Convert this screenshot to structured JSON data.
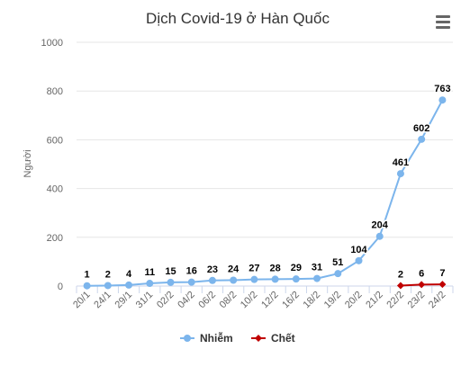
{
  "chart_data": {
    "type": "line",
    "title": "Dịch Covid-19 ở Hàn Quốc",
    "ylabel": "Người",
    "xlabel": "",
    "ylim": [
      0,
      1000
    ],
    "yticks": [
      0,
      200,
      400,
      600,
      800,
      1000
    ],
    "grid": true,
    "legend": "bottom",
    "categories": [
      "20/1",
      "24/1",
      "29/1",
      "31/1",
      "02/2",
      "04/2",
      "06/2",
      "08/2",
      "10/2",
      "12/2",
      "16/2",
      "18/2",
      "19/2",
      "20/2",
      "21/2",
      "22/2",
      "23/2",
      "24/2"
    ],
    "series": [
      {
        "name": "Nhiễm",
        "color": "#7cb5ec",
        "values": [
          1,
          2,
          4,
          11,
          15,
          16,
          23,
          24,
          27,
          28,
          29,
          31,
          51,
          104,
          204,
          461,
          602,
          763
        ],
        "labels": [
          "1",
          "2",
          "4",
          "11",
          "15",
          "16",
          "23",
          "24",
          "27",
          "28",
          "29",
          "31",
          "51",
          "104",
          "204",
          "461",
          "602",
          "763"
        ]
      },
      {
        "name": "Chết",
        "color": "#c00000",
        "values": [
          null,
          null,
          null,
          null,
          null,
          null,
          null,
          null,
          null,
          null,
          null,
          null,
          null,
          null,
          null,
          2,
          6,
          7
        ],
        "labels": [
          "",
          "",
          "",
          "",
          "",
          "",
          "",
          "",
          "",
          "",
          "",
          "",
          "",
          "",
          "",
          "2",
          "6",
          "7"
        ]
      }
    ]
  },
  "menu": {
    "icon": "hamburger-menu-icon"
  }
}
